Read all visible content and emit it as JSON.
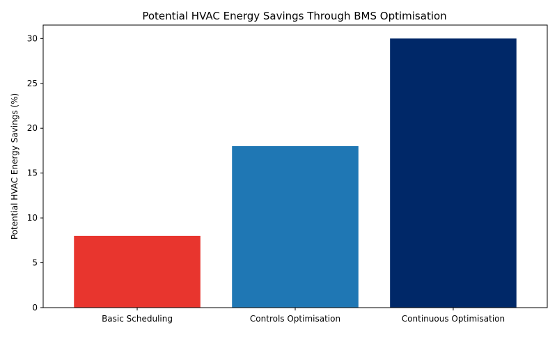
{
  "chart_data": {
    "type": "bar",
    "title": "Potential HVAC Energy Savings Through BMS Optimisation",
    "xlabel": "",
    "ylabel": "Potential HVAC Energy Savings (%)",
    "categories": [
      "Basic Scheduling",
      "Controls Optimisation",
      "Continuous Optimisation"
    ],
    "values": [
      8,
      18,
      30
    ],
    "colors": [
      "#e8352e",
      "#1f77b4",
      "#002868"
    ],
    "ylim": [
      0,
      31.5
    ],
    "yticks": [
      0,
      5,
      10,
      15,
      20,
      25,
      30
    ],
    "grid": false,
    "legend": "none"
  }
}
